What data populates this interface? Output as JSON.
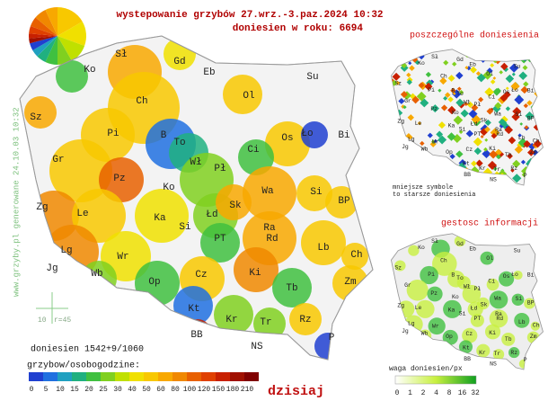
{
  "header": {
    "title": "wystepowanie grzybów 27.wrz.-3.paz.2024 10:32",
    "subtitle": "doniesien w roku: 6694"
  },
  "main_map": {
    "labels": [
      "Sł",
      "Gd",
      "Eb",
      "Su",
      "Ko",
      "Ch",
      "Ol",
      "Sz",
      "Pi",
      "B",
      "To",
      "Os",
      "Ło",
      "Bi",
      "Gr",
      "Pz",
      "Wł",
      "Ci",
      "Pł",
      "Ko",
      "Wa",
      "Zg",
      "Le",
      "Ka",
      "Si",
      "Łd",
      "Sk",
      "Si",
      "BP",
      "Ra",
      "PT",
      "Rd",
      "Lg",
      "Lb",
      "Ch",
      "Wr",
      "Ki",
      "Op",
      "Cz",
      "Zm",
      "Jg",
      "Wb",
      "Kt",
      "Tb",
      "Kr",
      "Tr",
      "Rz",
      "BB",
      "NS",
      "P"
    ]
  },
  "side_text": "www.grzyby.pl generowane 24.10.03 10:32",
  "scale": {
    "length": "10",
    "radius": "r=45"
  },
  "reports_count": "doniesien 1542+9/1060",
  "legend": {
    "caption": "grzybow/osobogodzine:",
    "labels": [
      "0",
      "5",
      "10",
      "15",
      "20",
      "25",
      "30",
      "40",
      "50",
      "60",
      "80",
      "100",
      "120",
      "150",
      "180",
      "210"
    ],
    "colors": [
      "#2040d0",
      "#2070e0",
      "#20a0c0",
      "#20b080",
      "#40c040",
      "#80d020",
      "#c0e000",
      "#f0e000",
      "#f8c800",
      "#f8a800",
      "#f08800",
      "#e86000",
      "#e04000",
      "#c82000",
      "#a01000",
      "#800000"
    ],
    "today": "dzisiaj"
  },
  "panel_reports": {
    "title": "poszczególne doniesienia",
    "labels": [
      "Sł",
      "Gd",
      "Eb",
      "Su",
      "Ko",
      "Ch",
      "Ol",
      "Sz",
      "Pi",
      "B",
      "To",
      "Os",
      "Ło",
      "Bi",
      "Gr",
      "Pz",
      "Wł",
      "Ci",
      "Pł",
      "Ko",
      "Wa",
      "Zg",
      "Le",
      "Ka",
      "Si",
      "Łd",
      "Sk",
      "Si",
      "BP",
      "Ra",
      "PT",
      "Rd",
      "Lg",
      "Lb",
      "Ch",
      "Wr",
      "Ki",
      "Op",
      "Cz",
      "Zm",
      "Jg",
      "Wb",
      "Kt",
      "Tb",
      "Kr",
      "Tr",
      "Rz",
      "BB",
      "NS",
      "P"
    ],
    "note": [
      "mniejsze symbole",
      "to starsze doniesienia"
    ]
  },
  "panel_density": {
    "title": "gestosc informacji",
    "labels": [
      "Sł",
      "Gd",
      "Eb",
      "Su",
      "Ko",
      "Ch",
      "Ol",
      "Sz",
      "Pi",
      "B",
      "To",
      "Os",
      "Ło",
      "Bi",
      "Gr",
      "Pz",
      "Wł",
      "Ci",
      "Pł",
      "Ko",
      "Wa",
      "Zg",
      "Le",
      "Ka",
      "Si",
      "Łd",
      "Sk",
      "Si",
      "BP",
      "Ra",
      "PT",
      "Rd",
      "Lg",
      "Lb",
      "Ch",
      "Wr",
      "Ki",
      "Op",
      "Cz",
      "Zm",
      "Jg",
      "Wb",
      "Kt",
      "Tb",
      "Kr",
      "Tr",
      "Rz",
      "BB",
      "NS",
      "P"
    ],
    "legend_caption": "waga doniesien/px",
    "legend_labels": [
      "0",
      "1",
      "2",
      "4",
      "8",
      "16",
      "32"
    ]
  }
}
